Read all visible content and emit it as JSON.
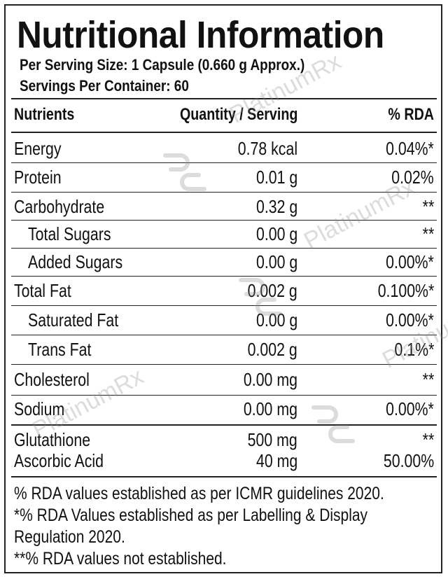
{
  "label": {
    "title": "Nutritional Information",
    "serving_size": "Per Serving Size: 1 Capsule (0.660 g Approx.)",
    "servings_per_container": "Servings Per Container: 60"
  },
  "table": {
    "headers": [
      "Nutrients",
      "Quantity / Serving",
      "% RDA"
    ],
    "rows": [
      {
        "name": "Energy",
        "qty": "0.78 kcal",
        "rda": "0.04%*",
        "indent": false
      },
      {
        "name": "Protein",
        "qty": "0.01 g",
        "rda": "0.02%",
        "indent": false
      },
      {
        "name": "Carbohydrate",
        "qty": "0.32 g",
        "rda": "**",
        "indent": false
      },
      {
        "name": "Total Sugars",
        "qty": "0.00 g",
        "rda": "**",
        "indent": true
      },
      {
        "name": "Added Sugars",
        "qty": "0.00 g",
        "rda": "0.00%*",
        "indent": true
      },
      {
        "name": "Total Fat",
        "qty": "0.002 g",
        "rda": "0.100%*",
        "indent": false
      },
      {
        "name": "Saturated Fat",
        "qty": "0.00 g",
        "rda": "0.00%*",
        "indent": true
      },
      {
        "name": "Trans Fat",
        "qty": "0.002 g",
        "rda": "0.1%*",
        "indent": true
      },
      {
        "name": "Cholesterol",
        "qty": "0.00 mg",
        "rda": "**",
        "indent": false
      },
      {
        "name": "Sodium",
        "qty": "0.00 mg",
        "rda": "0.00%*",
        "indent": false
      },
      {
        "name": "Glutathione",
        "qty": "500 mg",
        "rda": "**",
        "indent": false
      },
      {
        "name": "Ascorbic Acid",
        "qty": "40 mg",
        "rda": "50.00%",
        "indent": false
      }
    ]
  },
  "notes": [
    "% RDA values established as per ICMR guidelines 2020.",
    "*% RDA Values established as per Labelling & Display",
    "Regulation 2020.",
    "**% RDA values not established."
  ],
  "watermark": {
    "text": "PlatinumRx",
    "icon": "platinumrx-logo-icon"
  }
}
